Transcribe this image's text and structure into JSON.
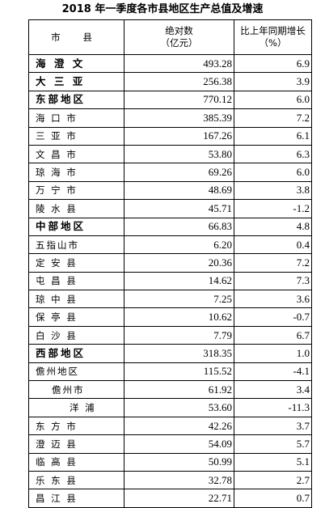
{
  "title": "2018 年一季度各市县地区生产总值及增速",
  "header": {
    "region": "市 县",
    "absolute_line1": "绝对数",
    "absolute_line2": "（亿元）",
    "growth_line1": "比上年同期增长",
    "growth_line2": "（%）"
  },
  "rows": [
    {
      "name": "海 澄 文",
      "value": "493.28",
      "growth": "6.9",
      "style": "bold"
    },
    {
      "name": "大 三 亚",
      "value": "256.38",
      "growth": "3.9",
      "style": "bold"
    },
    {
      "name": "东部地区",
      "value": "770.12",
      "growth": "6.0",
      "style": "bold"
    },
    {
      "name": "海 口 市",
      "value": "385.39",
      "growth": "7.2",
      "style": "normal"
    },
    {
      "name": "三 亚 市",
      "value": "167.26",
      "growth": "6.1",
      "style": "normal"
    },
    {
      "name": "文 昌 市",
      "value": "53.80",
      "growth": "6.3",
      "style": "normal"
    },
    {
      "name": "琼 海 市",
      "value": "69.26",
      "growth": "6.0",
      "style": "normal"
    },
    {
      "name": "万 宁 市",
      "value": "48.69",
      "growth": "3.8",
      "style": "normal"
    },
    {
      "name": "陵 水 县",
      "value": "45.71",
      "growth": "-1.2",
      "style": "normal"
    },
    {
      "name": "中部地区",
      "value": "66.83",
      "growth": "4.8",
      "style": "bold"
    },
    {
      "name": "五指山市",
      "value": "6.20",
      "growth": "0.4",
      "style": "normal"
    },
    {
      "name": "定 安 县",
      "value": "20.36",
      "growth": "7.2",
      "style": "normal"
    },
    {
      "name": "屯 昌 县",
      "value": "14.62",
      "growth": "7.3",
      "style": "normal"
    },
    {
      "name": "琼 中 县",
      "value": "7.25",
      "growth": "3.6",
      "style": "normal"
    },
    {
      "name": "保 亭 县",
      "value": "10.62",
      "growth": "-0.7",
      "style": "normal"
    },
    {
      "name": "白 沙 县",
      "value": "7.79",
      "growth": "6.7",
      "style": "normal"
    },
    {
      "name": "西部地区",
      "value": "318.35",
      "growth": "1.0",
      "style": "bold"
    },
    {
      "name": "儋州地区",
      "value": "115.52",
      "growth": "-4.1",
      "style": "normal"
    },
    {
      "name": "儋州市",
      "value": "61.92",
      "growth": "3.4",
      "style": "sub1"
    },
    {
      "name": "洋 浦",
      "value": "53.60",
      "growth": "-11.3",
      "style": "sub2"
    },
    {
      "name": "东 方 市",
      "value": "42.26",
      "growth": "3.7",
      "style": "normal"
    },
    {
      "name": "澄 迈 县",
      "value": "54.09",
      "growth": "5.7",
      "style": "normal"
    },
    {
      "name": "临 高 县",
      "value": "50.99",
      "growth": "5.1",
      "style": "normal"
    },
    {
      "name": "乐 东 县",
      "value": "32.78",
      "growth": "2.7",
      "style": "normal"
    },
    {
      "name": "昌 江 县",
      "value": "22.71",
      "growth": "0.7",
      "style": "normal"
    }
  ]
}
